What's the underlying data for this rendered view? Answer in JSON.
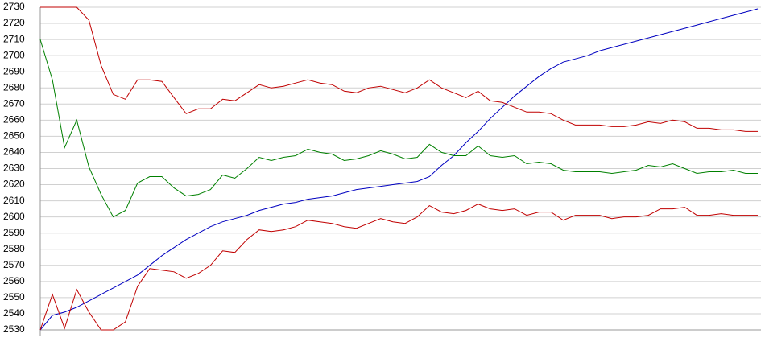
{
  "chart_data": {
    "type": "line",
    "series": [
      {
        "color": "#0000c0",
        "values": [
          2530,
          2539,
          2541,
          2544,
          2548,
          2552,
          2556,
          2560,
          2564,
          2570,
          2576,
          2581,
          2586,
          2590,
          2594,
          2597,
          2599,
          2601,
          2604,
          2606,
          2608,
          2609,
          2611,
          2612,
          2613,
          2615,
          2617,
          2618,
          2619,
          2620,
          2621,
          2622,
          2625,
          2632,
          2638,
          2646,
          2653,
          2661,
          2668,
          2675,
          2681,
          2687,
          2692,
          2696,
          2698,
          2700,
          2703,
          2705,
          2707,
          2709,
          2711,
          2713,
          2715,
          2717,
          2719,
          2721,
          2723,
          2725,
          2727,
          2729
        ]
      },
      {
        "color": "#c00000",
        "values": [
          2730,
          2730,
          2730,
          2730,
          2722,
          2694,
          2676,
          2673,
          2685,
          2685,
          2684,
          2674,
          2664,
          2667,
          2667,
          2673,
          2672,
          2677,
          2682,
          2680,
          2681,
          2683,
          2685,
          2683,
          2682,
          2678,
          2677,
          2680,
          2681,
          2679,
          2677,
          2680,
          2685,
          2680,
          2677,
          2674,
          2678,
          2672,
          2671,
          2668,
          2665,
          2665,
          2664,
          2660,
          2657,
          2657,
          2657,
          2656,
          2656,
          2657,
          2659,
          2658,
          2660,
          2659,
          2655,
          2655,
          2654,
          2654,
          2653,
          2653
        ]
      },
      {
        "color": "#008000",
        "values": [
          2710,
          2685,
          2643,
          2660,
          2631,
          2614,
          2600,
          2604,
          2621,
          2625,
          2625,
          2618,
          2613,
          2614,
          2617,
          2626,
          2624,
          2630,
          2637,
          2635,
          2637,
          2638,
          2642,
          2640,
          2639,
          2635,
          2636,
          2638,
          2641,
          2639,
          2636,
          2637,
          2645,
          2640,
          2638,
          2638,
          2644,
          2638,
          2637,
          2638,
          2633,
          2634,
          2633,
          2629,
          2628,
          2628,
          2628,
          2627,
          2628,
          2629,
          2632,
          2631,
          2633,
          2630,
          2627,
          2628,
          2628,
          2629,
          2627,
          2627
        ]
      },
      {
        "color": "#c00000",
        "values": [
          2530,
          2552,
          2531,
          2555,
          2541,
          2530,
          2530,
          2535,
          2557,
          2568,
          2567,
          2566,
          2562,
          2565,
          2570,
          2579,
          2578,
          2586,
          2592,
          2591,
          2592,
          2594,
          2598,
          2597,
          2596,
          2594,
          2593,
          2596,
          2599,
          2597,
          2596,
          2600,
          2607,
          2603,
          2602,
          2604,
          2608,
          2605,
          2604,
          2605,
          2601,
          2603,
          2603,
          2598,
          2601,
          2601,
          2601,
          2599,
          2600,
          2600,
          2601,
          2605,
          2605,
          2606,
          2601,
          2601,
          2602,
          2601,
          2601,
          2601
        ]
      }
    ],
    "ylim": [
      2530,
      2730
    ],
    "yticks": [
      2530,
      2540,
      2550,
      2560,
      2570,
      2580,
      2590,
      2600,
      2610,
      2620,
      2630,
      2640,
      2650,
      2660,
      2670,
      2680,
      2690,
      2700,
      2710,
      2720,
      2730
    ],
    "grid": true
  }
}
